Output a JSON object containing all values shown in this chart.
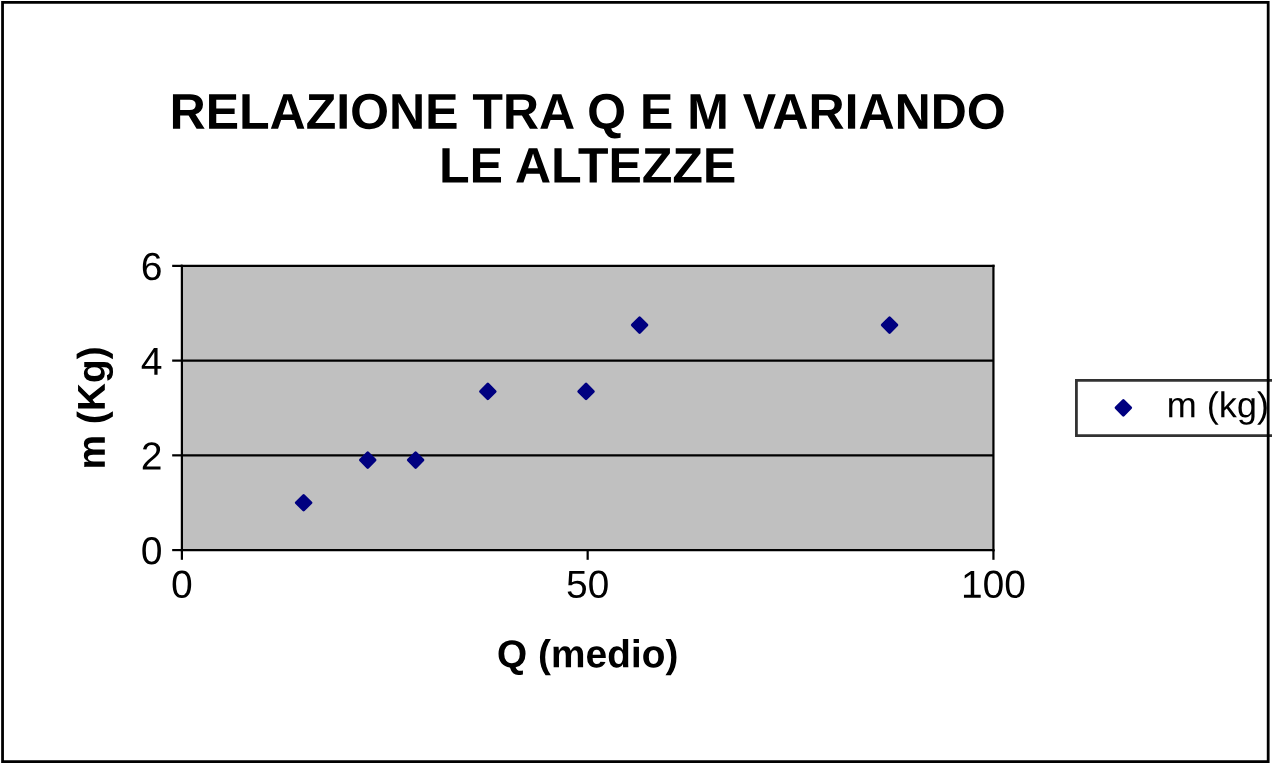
{
  "chart_data": {
    "type": "scatter",
    "title": "RELAZIONE TRA Q E M VARIANDO\nLE ALTEZZE",
    "xlabel": "Q (medio)",
    "ylabel": "m (Kg)",
    "x": [
      15.0,
      22.9,
      28.8,
      37.7,
      49.8,
      56.4,
      87.2
    ],
    "series": [
      {
        "name": "m (kg)",
        "color": "#000080",
        "values": [
          1.0,
          1.9,
          1.9,
          3.35,
          3.35,
          4.75,
          4.75
        ]
      }
    ],
    "xlim": [
      0,
      100
    ],
    "xticks": [
      0,
      50,
      100
    ],
    "ylim": [
      0,
      6
    ],
    "yticks": [
      0,
      2,
      4,
      6
    ],
    "grid": "y",
    "legend": "right",
    "marker": "diamond"
  }
}
